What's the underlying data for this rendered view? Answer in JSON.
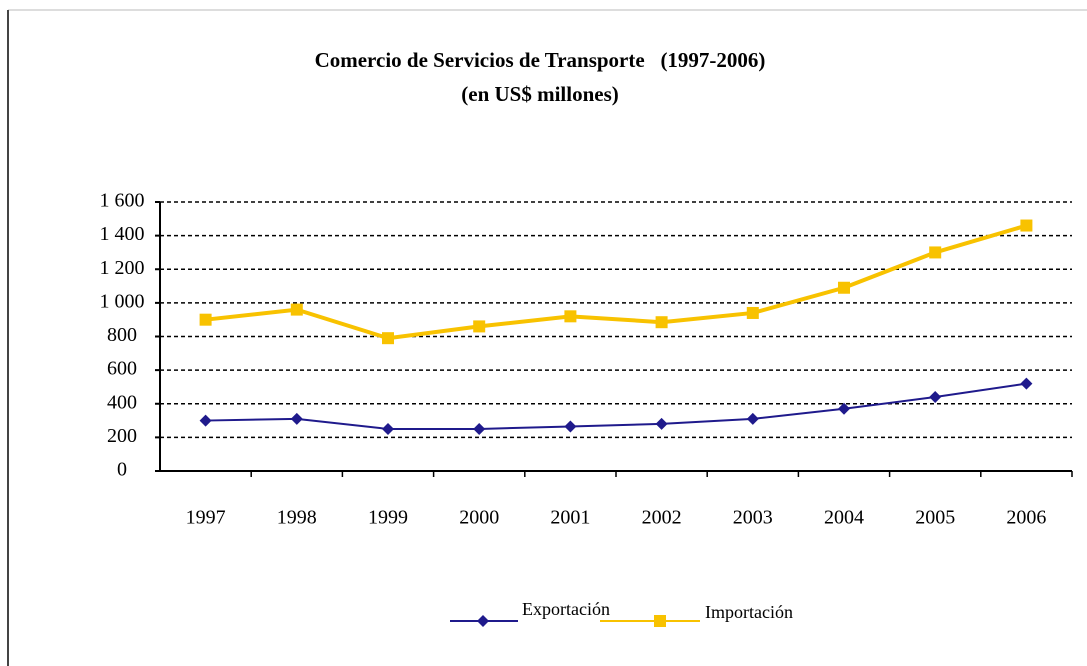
{
  "chart_data": {
    "type": "line",
    "title": "Comercio de Servicios de Transporte   (1997-2006)",
    "subtitle": "(en US$ millones)",
    "categories": [
      "1997",
      "1998",
      "1999",
      "2000",
      "2001",
      "2002",
      "2003",
      "2004",
      "2005",
      "2006"
    ],
    "series": [
      {
        "name": "Exportación",
        "color": "#1f1a8c",
        "marker": "diamond",
        "values": [
          300,
          310,
          250,
          250,
          265,
          280,
          310,
          370,
          440,
          520
        ]
      },
      {
        "name": "Importación",
        "color": "#f8c200",
        "marker": "square",
        "values": [
          900,
          960,
          790,
          860,
          920,
          885,
          940,
          1090,
          1300,
          1460
        ]
      }
    ],
    "ylim": [
      0,
      1600
    ],
    "yticks": [
      0,
      200,
      400,
      600,
      800,
      {
        "value": 1000,
        "label": "1 000"
      },
      {
        "value": 1200,
        "label": "1 200"
      },
      {
        "value": 1400,
        "label": "1 400"
      },
      {
        "value": 1600,
        "label": "1 600"
      }
    ],
    "grid": true,
    "legend": "bottom"
  }
}
